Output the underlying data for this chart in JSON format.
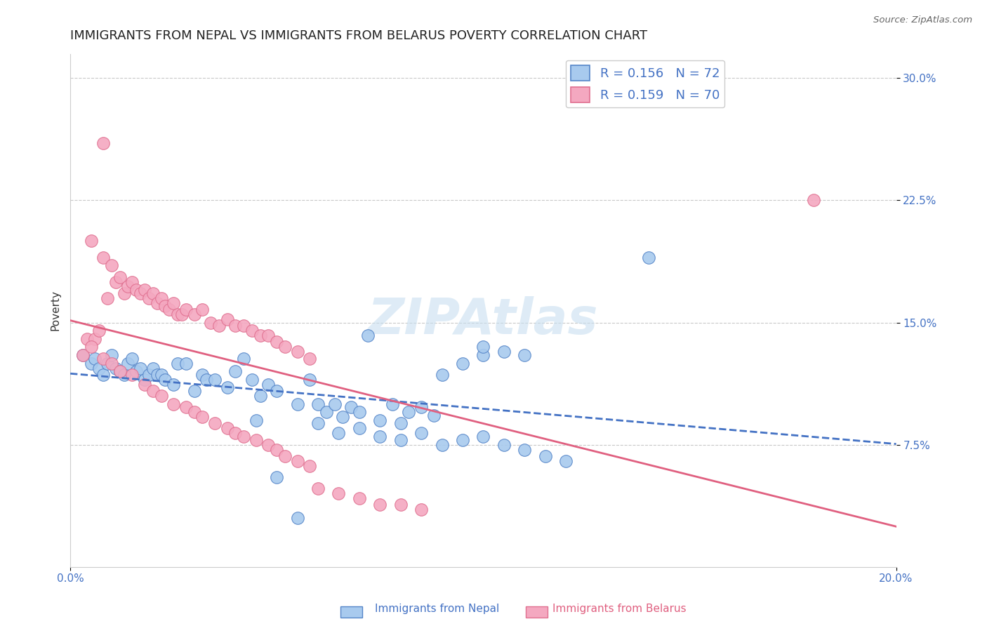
{
  "title": "IMMIGRANTS FROM NEPAL VS IMMIGRANTS FROM BELARUS POVERTY CORRELATION CHART",
  "source": "Source: ZipAtlas.com",
  "ylabel": "Poverty",
  "xlim": [
    0.0,
    0.2
  ],
  "ylim": [
    0.0,
    0.315
  ],
  "nepal_color": "#A8CAEE",
  "belarus_color": "#F4A8C0",
  "nepal_edge_color": "#5585C8",
  "belarus_edge_color": "#E07090",
  "trendline_nepal_color": "#4472C4",
  "trendline_belarus_color": "#E06080",
  "watermark": "ZIPAtlas",
  "legend_R_nepal": "R = 0.156",
  "legend_N_nepal": "N = 72",
  "legend_R_belarus": "R = 0.159",
  "legend_N_belarus": "N = 70",
  "grid_color": "#BBBBBB",
  "background_color": "#FFFFFF",
  "title_fontsize": 13,
  "axis_label_fontsize": 11,
  "tick_fontsize": 11,
  "legend_fontsize": 13,
  "watermark_fontsize": 52,
  "watermark_color": "#C8DFF0",
  "watermark_alpha": 0.6,
  "nepal_x": [
    0.003,
    0.005,
    0.006,
    0.007,
    0.008,
    0.009,
    0.01,
    0.011,
    0.012,
    0.013,
    0.014,
    0.015,
    0.016,
    0.017,
    0.018,
    0.019,
    0.02,
    0.021,
    0.022,
    0.023,
    0.025,
    0.026,
    0.028,
    0.03,
    0.032,
    0.033,
    0.035,
    0.038,
    0.04,
    0.042,
    0.044,
    0.046,
    0.048,
    0.05,
    0.055,
    0.058,
    0.06,
    0.062,
    0.064,
    0.066,
    0.068,
    0.07,
    0.072,
    0.075,
    0.078,
    0.08,
    0.082,
    0.085,
    0.088,
    0.09,
    0.095,
    0.1,
    0.105,
    0.11,
    0.06,
    0.065,
    0.07,
    0.075,
    0.08,
    0.085,
    0.09,
    0.095,
    0.1,
    0.105,
    0.11,
    0.115,
    0.12,
    0.045,
    0.05,
    0.055,
    0.1,
    0.14
  ],
  "nepal_y": [
    0.13,
    0.125,
    0.128,
    0.122,
    0.118,
    0.125,
    0.13,
    0.122,
    0.12,
    0.118,
    0.125,
    0.128,
    0.12,
    0.122,
    0.115,
    0.118,
    0.122,
    0.118,
    0.118,
    0.115,
    0.112,
    0.125,
    0.125,
    0.108,
    0.118,
    0.115,
    0.115,
    0.11,
    0.12,
    0.128,
    0.115,
    0.105,
    0.112,
    0.108,
    0.1,
    0.115,
    0.1,
    0.095,
    0.1,
    0.092,
    0.098,
    0.095,
    0.142,
    0.09,
    0.1,
    0.088,
    0.095,
    0.098,
    0.093,
    0.118,
    0.125,
    0.13,
    0.132,
    0.13,
    0.088,
    0.082,
    0.085,
    0.08,
    0.078,
    0.082,
    0.075,
    0.078,
    0.08,
    0.075,
    0.072,
    0.068,
    0.065,
    0.09,
    0.055,
    0.03,
    0.135,
    0.19
  ],
  "belarus_x": [
    0.003,
    0.004,
    0.005,
    0.006,
    0.007,
    0.008,
    0.009,
    0.01,
    0.011,
    0.012,
    0.013,
    0.014,
    0.015,
    0.016,
    0.017,
    0.018,
    0.019,
    0.02,
    0.021,
    0.022,
    0.023,
    0.024,
    0.025,
    0.026,
    0.027,
    0.028,
    0.03,
    0.032,
    0.034,
    0.036,
    0.038,
    0.04,
    0.042,
    0.044,
    0.046,
    0.048,
    0.05,
    0.052,
    0.055,
    0.058,
    0.005,
    0.008,
    0.01,
    0.012,
    0.015,
    0.018,
    0.02,
    0.022,
    0.025,
    0.028,
    0.03,
    0.032,
    0.035,
    0.038,
    0.04,
    0.042,
    0.045,
    0.048,
    0.05,
    0.052,
    0.055,
    0.058,
    0.06,
    0.065,
    0.07,
    0.075,
    0.08,
    0.085,
    0.18,
    0.008
  ],
  "belarus_y": [
    0.13,
    0.14,
    0.2,
    0.14,
    0.145,
    0.19,
    0.165,
    0.185,
    0.175,
    0.178,
    0.168,
    0.172,
    0.175,
    0.17,
    0.168,
    0.17,
    0.165,
    0.168,
    0.162,
    0.165,
    0.16,
    0.158,
    0.162,
    0.155,
    0.155,
    0.158,
    0.155,
    0.158,
    0.15,
    0.148,
    0.152,
    0.148,
    0.148,
    0.145,
    0.142,
    0.142,
    0.138,
    0.135,
    0.132,
    0.128,
    0.135,
    0.128,
    0.125,
    0.12,
    0.118,
    0.112,
    0.108,
    0.105,
    0.1,
    0.098,
    0.095,
    0.092,
    0.088,
    0.085,
    0.082,
    0.08,
    0.078,
    0.075,
    0.072,
    0.068,
    0.065,
    0.062,
    0.048,
    0.045,
    0.042,
    0.038,
    0.038,
    0.035,
    0.225,
    0.26
  ]
}
